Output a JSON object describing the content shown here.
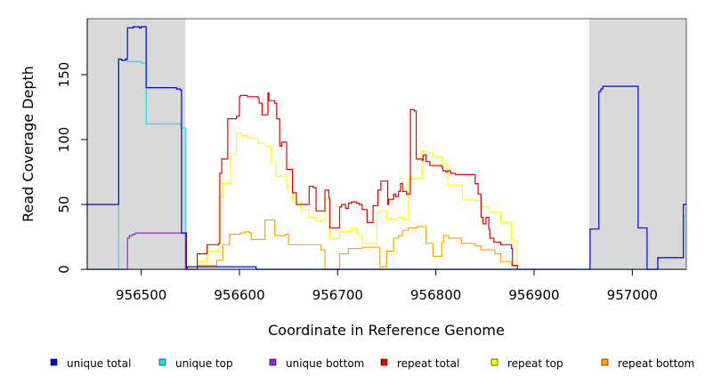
{
  "chart_data": {
    "type": "line",
    "title": "",
    "xlabel": "Coordinate in Reference Genome",
    "ylabel": "Read Coverage Depth",
    "xlim": [
      956445,
      957055
    ],
    "ylim": [
      0,
      192
    ],
    "xticks": [
      956500,
      956600,
      956700,
      956800,
      956900,
      957000
    ],
    "xtick_labels": [
      "956500",
      "956600",
      "956700",
      "956800",
      "956900",
      "957000"
    ],
    "yticks": [
      0,
      50,
      100,
      150
    ],
    "ytick_labels": [
      "0",
      "50",
      "100",
      "150"
    ],
    "shaded_regions": [
      [
        956445,
        956545
      ],
      [
        956956,
        957055
      ]
    ],
    "shade_color": "#d9d9d9",
    "grid": false,
    "legend_position": "bottom",
    "series": [
      {
        "name": "unique total",
        "color": "#0000ee",
        "step": true,
        "x": [
          956445,
          956475,
          956477,
          956480,
          956484,
          956486,
          956489,
          956492,
          956498,
          956500,
          956505,
          956536,
          956540,
          956541,
          956545,
          956546,
          956547,
          956615,
          956617,
          956955,
          956957,
          956958,
          956966,
          956968,
          956970,
          956974,
          956977,
          957005,
          957006,
          957012,
          957015,
          957023,
          957026,
          957042,
          957052,
          957055
        ],
        "y": [
          50,
          50,
          162,
          161,
          162,
          186,
          186,
          187,
          186,
          187,
          140,
          139,
          138,
          28,
          28,
          1,
          2,
          2,
          0,
          0,
          31,
          31,
          137,
          139,
          141,
          141,
          141,
          141,
          32,
          32,
          0,
          0,
          9,
          9,
          50,
          50
        ]
      },
      {
        "name": "unique top",
        "color": "#00eeee",
        "step": true,
        "x": [
          956445,
          956475,
          956477,
          956480,
          956486,
          956500,
          956505,
          956540,
          956541,
          956545,
          956546,
          956955,
          956957,
          956958,
          956966,
          956968,
          956970,
          957005,
          957006,
          957012,
          957015,
          957023,
          957026,
          957042,
          957052,
          957055
        ],
        "y": [
          0,
          0,
          162,
          161,
          160,
          159,
          112,
          111,
          109,
          0,
          0,
          0,
          0,
          0,
          0,
          0,
          0,
          0,
          0,
          0,
          0,
          0,
          9,
          9,
          41,
          41
        ],
        "visible_range": [
          956445,
          956545
        ]
      },
      {
        "name": "unique bottom",
        "color": "#a020f0",
        "step": true,
        "x": [
          956445,
          956484,
          956486,
          956488,
          956491,
          956494,
          956541,
          956545
        ],
        "y": [
          0,
          0,
          24,
          26,
          27,
          28,
          28,
          0
        ]
      },
      {
        "name": "repeat total",
        "color": "#ee0000",
        "step": true,
        "x": [
          956545,
          956557,
          956567,
          956579,
          956580,
          956582,
          956588,
          956597,
          956600,
          956601,
          956608,
          956619,
          956620,
          956623,
          956629,
          956630,
          956636,
          956638,
          956641,
          956643,
          956648,
          956654,
          956658,
          956668,
          956671,
          956675,
          956678,
          956683,
          956687,
          956691,
          956692,
          956702,
          956704,
          956708,
          956711,
          956714,
          956719,
          956722,
          956725,
          956730,
          956732,
          956736,
          956740,
          956741,
          956744,
          956751,
          956752,
          956757,
          956759,
          956762,
          956764,
          956766,
          956770,
          956774,
          956778,
          956780,
          956786,
          956787,
          956790,
          956794,
          956806,
          956807,
          956810,
          956812,
          956815,
          956820,
          956827,
          956840,
          956843,
          956846,
          956848,
          956851,
          956854,
          956855,
          956859,
          956866,
          956872,
          956877,
          956878,
          956883
        ],
        "y": [
          0,
          12,
          19,
          20,
          74,
          85,
          116,
          118,
          133,
          134,
          133,
          132,
          128,
          119,
          136,
          130,
          128,
          116,
          95,
          98,
          77,
          59,
          50,
          50,
          64,
          63,
          45,
          45,
          61,
          55,
          32,
          48,
          50,
          47,
          51,
          52,
          51,
          50,
          46,
          36,
          36,
          49,
          49,
          61,
          68,
          50,
          54,
          58,
          56,
          60,
          66,
          60,
          58,
          123,
          122,
          85,
          84,
          88,
          83,
          80,
          79,
          76,
          75,
          76,
          74,
          73,
          73,
          66,
          58,
          40,
          35,
          40,
          31,
          24,
          21,
          19,
          19,
          16,
          3,
          0
        ]
      },
      {
        "name": "repeat top",
        "color": "#ffff00",
        "step": true,
        "x": [
          956545,
          956557,
          956567,
          956579,
          956583,
          956591,
          956597,
          956602,
          956608,
          956619,
          956626,
          956632,
          956637,
          956648,
          956654,
          956663,
          956671,
          956678,
          956683,
          956687,
          956692,
          956702,
          956714,
          956719,
          956722,
          956725,
          956730,
          956740,
          956744,
          956750,
          956757,
          956762,
          956766,
          956772,
          956786,
          956791,
          956797,
          956806,
          956812,
          956827,
          956840,
          956846,
          956854,
          956866,
          956877,
          956883
        ],
        "y": [
          0,
          6,
          14,
          56,
          66,
          89,
          105,
          103,
          101,
          97,
          95,
          83,
          72,
          63,
          52,
          46,
          40,
          37,
          38,
          54,
          24,
          29,
          32,
          28,
          26,
          20,
          20,
          44,
          45,
          39,
          38,
          40,
          39,
          70,
          91,
          90,
          87,
          81,
          65,
          54,
          53,
          48,
          44,
          36,
          22,
          0
        ]
      },
      {
        "name": "repeat bottom",
        "color": "#ffa500",
        "step": true,
        "x": [
          956545,
          956557,
          956577,
          956583,
          956590,
          956601,
          956606,
          956610,
          956612,
          956626,
          956631,
          956636,
          956647,
          956650,
          956654,
          956663,
          956671,
          956683,
          956687,
          956689,
          956692,
          956702,
          956711,
          956722,
          956725,
          956730,
          956736,
          956740,
          956743,
          956750,
          956757,
          956762,
          956766,
          956772,
          956781,
          956790,
          956797,
          956806,
          956808,
          956813,
          956826,
          956840,
          956846,
          956860,
          956866,
          956877,
          956883
        ],
        "y": [
          0,
          3,
          7,
          19,
          27,
          28,
          29,
          28,
          23,
          38,
          38,
          26,
          27,
          19,
          19,
          19,
          19,
          15,
          0,
          0,
          0,
          12,
          16,
          16,
          17,
          17,
          17,
          17,
          2,
          14,
          24,
          26,
          30,
          32,
          33,
          20,
          10,
          21,
          26,
          24,
          20,
          18,
          15,
          12,
          6,
          3,
          0
        ]
      }
    ]
  },
  "legend": [
    {
      "label": "unique total",
      "color": "#0000ee"
    },
    {
      "label": "unique top",
      "color": "#00eeee"
    },
    {
      "label": "unique bottom",
      "color": "#a020f0"
    },
    {
      "label": "repeat total",
      "color": "#ee0000"
    },
    {
      "label": "repeat top",
      "color": "#ffff00"
    },
    {
      "label": "repeat bottom",
      "color": "#ffa500"
    }
  ]
}
